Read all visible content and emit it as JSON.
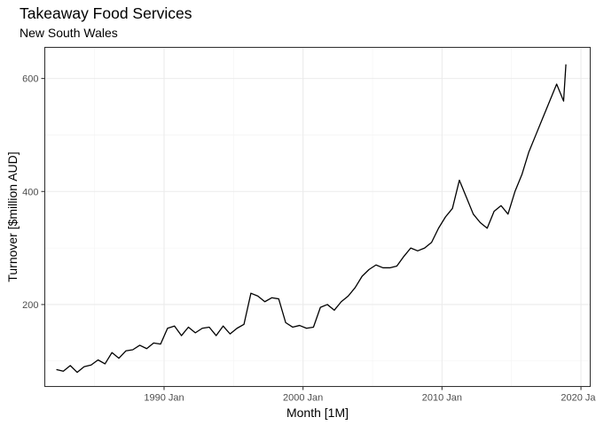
{
  "chart_data": {
    "type": "line",
    "title": "Takeaway Food Services",
    "subtitle": "New South Wales",
    "xlabel": "Month [1M]",
    "ylabel": "Turnover [$million AUD]",
    "x_ticks": [
      "1990 Jan",
      "2000 Jan",
      "2010 Jan",
      "2020 Jan"
    ],
    "y_ticks": [
      200,
      400,
      600
    ],
    "xlim": [
      "1981-06",
      "2020-09"
    ],
    "ylim": [
      55,
      655
    ],
    "grid": true,
    "x_start": "1982-04",
    "x_end": "2018-12",
    "series": [
      {
        "name": "",
        "color": "#000000",
        "x": [
          "1982-04",
          "1982-10",
          "1983-04",
          "1983-10",
          "1984-04",
          "1984-10",
          "1985-04",
          "1985-10",
          "1986-04",
          "1986-10",
          "1987-04",
          "1987-10",
          "1988-04",
          "1988-10",
          "1989-04",
          "1989-10",
          "1990-04",
          "1990-10",
          "1991-04",
          "1991-10",
          "1992-04",
          "1992-10",
          "1993-04",
          "1993-10",
          "1994-04",
          "1994-10",
          "1995-04",
          "1995-10",
          "1996-04",
          "1996-10",
          "1997-04",
          "1997-10",
          "1998-04",
          "1998-10",
          "1999-04",
          "1999-10",
          "2000-04",
          "2000-10",
          "2001-04",
          "2001-10",
          "2002-04",
          "2002-10",
          "2003-04",
          "2003-10",
          "2004-04",
          "2004-10",
          "2005-04",
          "2005-10",
          "2006-04",
          "2006-10",
          "2007-04",
          "2007-10",
          "2008-04",
          "2008-10",
          "2009-04",
          "2009-10",
          "2010-04",
          "2010-10",
          "2011-04",
          "2011-10",
          "2012-04",
          "2012-10",
          "2013-04",
          "2013-10",
          "2014-04",
          "2014-10",
          "2015-04",
          "2015-10",
          "2016-04",
          "2016-10",
          "2017-04",
          "2017-10",
          "2018-04",
          "2018-10",
          "2018-12"
        ],
        "values": [
          85,
          82,
          92,
          80,
          90,
          93,
          102,
          95,
          115,
          105,
          118,
          120,
          128,
          122,
          132,
          130,
          158,
          162,
          145,
          160,
          150,
          158,
          160,
          145,
          162,
          148,
          158,
          165,
          220,
          215,
          205,
          212,
          210,
          168,
          160,
          163,
          158,
          160,
          195,
          200,
          190,
          205,
          215,
          230,
          250,
          262,
          270,
          265,
          265,
          268,
          285,
          300,
          295,
          300,
          310,
          335,
          355,
          370,
          420,
          390,
          360,
          345,
          335,
          365,
          375,
          360,
          400,
          430,
          470,
          500,
          530,
          560,
          590,
          560,
          625
        ]
      }
    ]
  }
}
